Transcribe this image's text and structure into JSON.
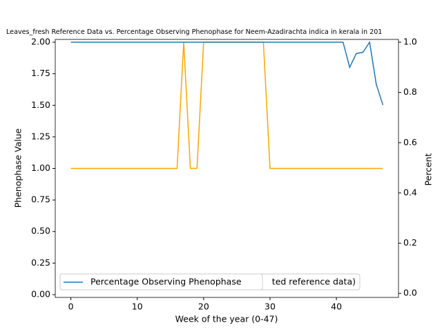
{
  "chart_data": {
    "type": "line",
    "title": "Leaves_fresh Reference Data vs. Percentage Observing Phenophase for Neem-Azadirachta indica in kerala in 201",
    "x_label": "Week of the year (0-47)",
    "y_label": "Phenophase Value",
    "y2_label": "Percent",
    "x": [
      0,
      1,
      2,
      3,
      4,
      5,
      6,
      7,
      8,
      9,
      10,
      11,
      12,
      13,
      14,
      15,
      16,
      17,
      18,
      19,
      20,
      21,
      22,
      23,
      24,
      25,
      26,
      27,
      28,
      29,
      30,
      31,
      32,
      33,
      34,
      35,
      36,
      37,
      38,
      39,
      40,
      41,
      42,
      43,
      44,
      45,
      46,
      47
    ],
    "series": [
      {
        "color": "#ffa500",
        "axis": "y",
        "values": [
          1,
          1,
          1,
          1,
          1,
          1,
          1,
          1,
          1,
          1,
          1,
          1,
          1,
          1,
          1,
          1,
          1,
          2,
          1,
          1,
          2,
          2,
          2,
          2,
          2,
          2,
          2,
          2,
          2,
          2,
          1,
          1,
          1,
          1,
          1,
          1,
          1,
          1,
          1,
          1,
          1,
          1,
          1,
          1,
          1,
          1,
          1,
          1
        ]
      },
      {
        "name": "Percentage Observing Phenophase",
        "color": "#1f77b4",
        "axis": "y2",
        "values": [
          1,
          1,
          1,
          1,
          1,
          1,
          1,
          1,
          1,
          1,
          1,
          1,
          1,
          1,
          1,
          1,
          1,
          1,
          1,
          1,
          1,
          1,
          1,
          1,
          1,
          1,
          1,
          1,
          1,
          1,
          1,
          1,
          1,
          1,
          1,
          1,
          1,
          1,
          1,
          1,
          1,
          1,
          0.9,
          0.955,
          0.96,
          1,
          0.833,
          0.75
        ]
      }
    ],
    "hidden_legend_text": "ted reference data)",
    "legend": "lower left",
    "xlim": [
      -2.35,
      49.35
    ],
    "xticks": [
      0,
      10,
      20,
      30,
      40
    ],
    "ylim": [
      -0.022,
      2.022
    ],
    "yticks": [
      {
        "value": 0,
        "label": "0.00"
      },
      {
        "value": 0.25,
        "label": "0.25"
      },
      {
        "value": 0.5,
        "label": "0.50"
      },
      {
        "value": 0.75,
        "label": "0.75"
      },
      {
        "value": 1,
        "label": "1.00"
      },
      {
        "value": 1.25,
        "label": "1.25"
      },
      {
        "value": 1.5,
        "label": "1.50"
      },
      {
        "value": 1.75,
        "label": "1.75"
      },
      {
        "value": 2,
        "label": "2.00"
      }
    ],
    "y2lim": [
      -0.016,
      1.011
    ],
    "y2ticks": [
      {
        "value": 0,
        "label": "0.0"
      },
      {
        "value": 0.2,
        "label": "0.2"
      },
      {
        "value": 0.4,
        "label": "0.4"
      },
      {
        "value": 0.6,
        "label": "0.6"
      },
      {
        "value": 0.8,
        "label": "0.8"
      },
      {
        "value": 1,
        "label": "1.0"
      }
    ]
  }
}
